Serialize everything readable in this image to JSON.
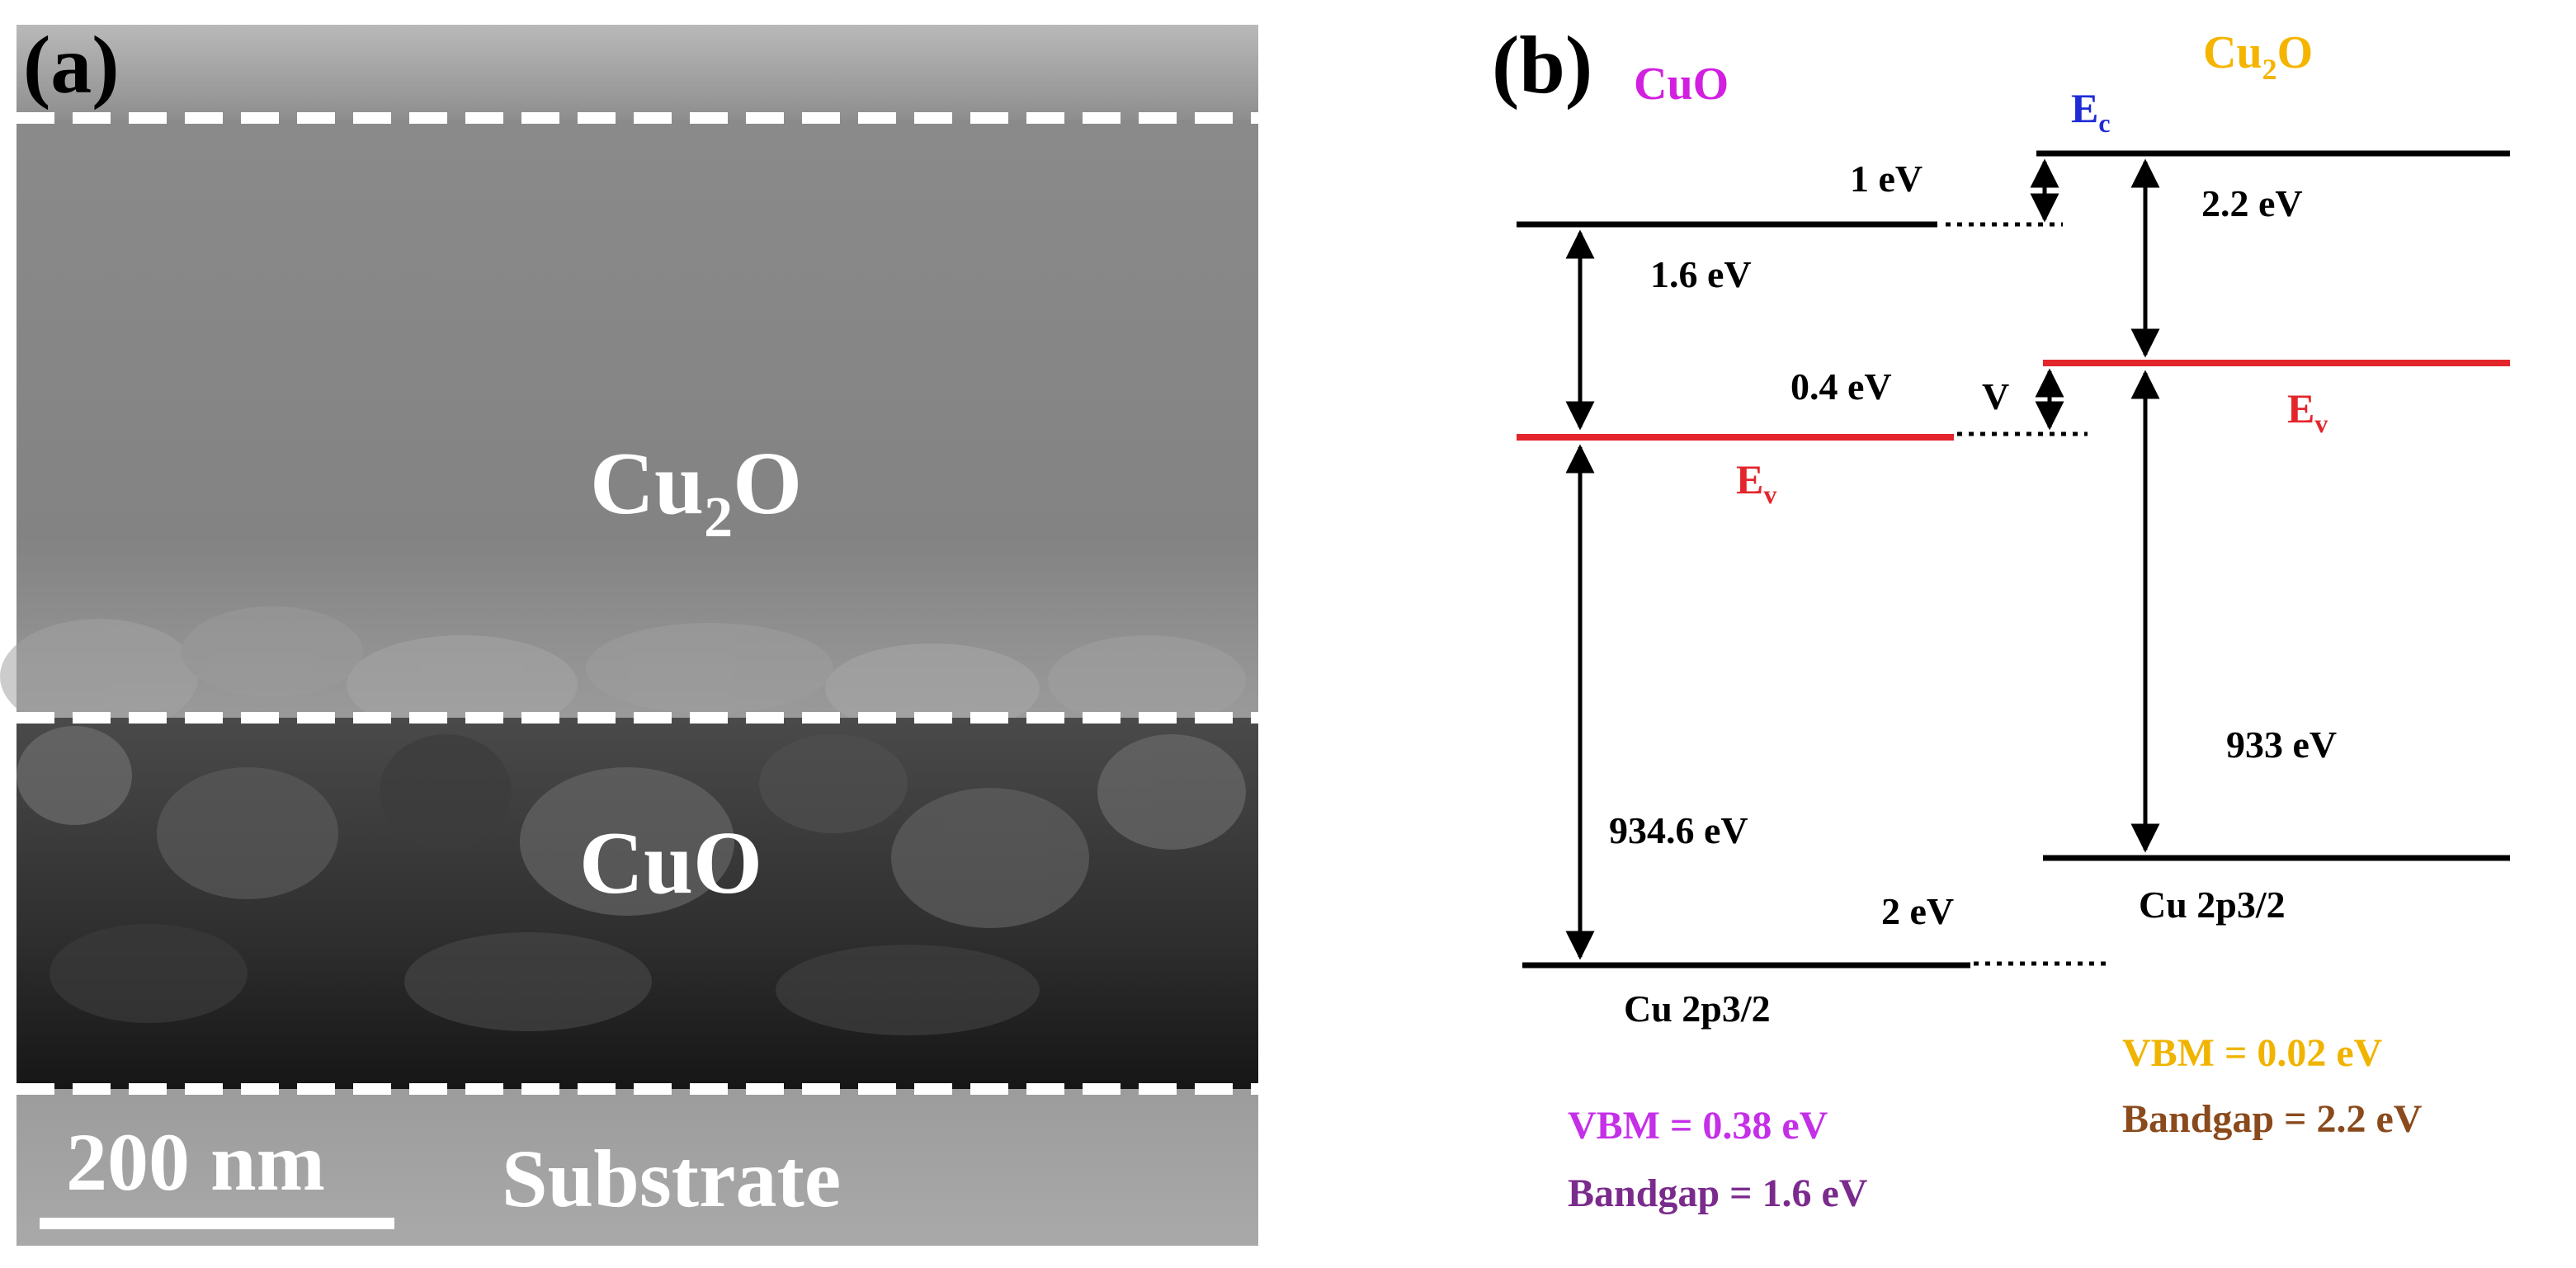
{
  "panel_a": {
    "label": "(a)",
    "layers": {
      "top": "Cu",
      "top_sub": "2",
      "top_tail": "O",
      "middle": "CuO",
      "bottom": "Substrate"
    },
    "scale_bar": "200 nm"
  },
  "panel_b": {
    "label": "(b)",
    "cuo": {
      "title": "CuO",
      "ev_label": "E",
      "ev_sub": "v",
      "gap_label": "1.6 eV",
      "core_gap_label": "934.6 eV",
      "core_label": "Cu 2p3/2",
      "vbm": "VBM = 0.38 eV",
      "bandgap": "Bandgap = 1.6 eV"
    },
    "cu2o": {
      "title_main": "Cu",
      "title_sub": "2",
      "title_tail": "O",
      "ec_label": "E",
      "ec_sub": "c",
      "ev_label": "E",
      "ev_sub": "v",
      "gap_label": "2.2 eV",
      "core_gap_label": "933 eV",
      "core_label": "Cu 2p3/2",
      "vbm": "VBM = 0.02 eV",
      "bandgap": "Bandgap = 2.2 eV"
    },
    "offsets": {
      "conduction": "1 eV",
      "valence": "0.4 eV",
      "valence_symbol": "V",
      "core": "2 eV"
    },
    "colors": {
      "cuo_title": "#d21fe0",
      "cu2o_title": "#f5b400",
      "ec": "#1e2bd6",
      "ev": "#e3262c",
      "cuo_vbm": "#c52fe8",
      "cuo_bandgap": "#7a2b8c",
      "cu2o_vbm": "#f0b400",
      "cu2o_bandgap": "#8a4a1c",
      "level": "#000000"
    }
  }
}
